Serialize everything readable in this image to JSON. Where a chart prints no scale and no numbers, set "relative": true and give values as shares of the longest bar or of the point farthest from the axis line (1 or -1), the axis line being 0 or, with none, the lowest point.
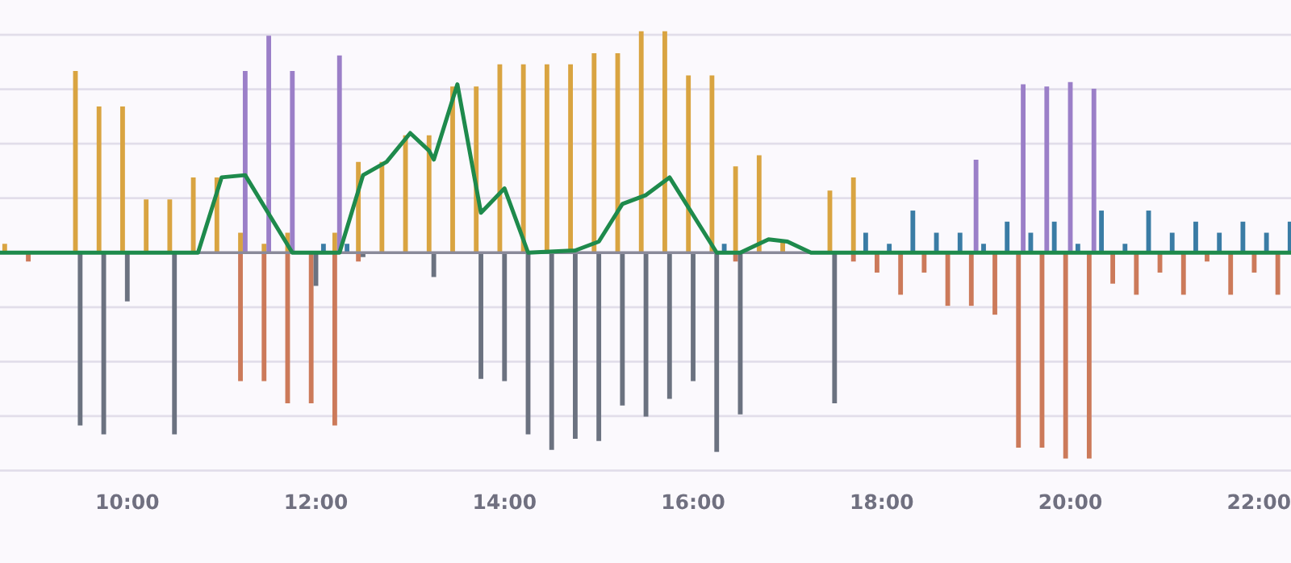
{
  "chart_data": {
    "type": "bar",
    "relative": true,
    "grid": "y",
    "tick_labels": "x",
    "xlim": [
      8.65,
      22.34
    ],
    "xticks": [
      {
        "value": 10,
        "label": "10:00"
      },
      {
        "value": 12,
        "label": "12:00"
      },
      {
        "value": 14,
        "label": "14:00"
      },
      {
        "value": 16,
        "label": "16:00"
      },
      {
        "value": 18,
        "label": "18:00"
      },
      {
        "value": 20,
        "label": "20:00"
      },
      {
        "value": 22,
        "label": "22:00"
      }
    ],
    "series": [
      {
        "color": "#d9a441",
        "x": [
          8.7,
          9.45,
          9.7,
          9.95,
          10.2,
          10.45,
          10.7,
          10.95,
          11.2,
          11.45,
          11.7,
          12.2,
          12.45,
          12.7,
          12.95,
          13.2,
          13.45,
          13.7,
          13.95,
          14.2,
          14.45,
          14.7,
          14.95,
          15.2,
          15.45,
          15.7,
          15.95,
          16.2,
          16.45,
          16.7,
          16.95,
          17.45,
          17.7
        ],
        "values": [
          0.04,
          0.82,
          0.66,
          0.66,
          0.24,
          0.24,
          0.34,
          0.34,
          0.09,
          0.04,
          0.09,
          0.09,
          0.41,
          0.41,
          0.53,
          0.53,
          0.75,
          0.75,
          0.85,
          0.85,
          0.85,
          0.85,
          0.9,
          0.9,
          1,
          1,
          0.8,
          0.8,
          0.39,
          0.44,
          0.05,
          0.28,
          0.34
        ]
      },
      {
        "color": "#cc7a5a",
        "x": [
          8.95,
          11.2,
          11.45,
          11.7,
          11.95,
          12.2,
          12.45,
          16.45,
          17.7,
          17.95,
          18.2,
          18.45,
          18.7,
          18.95,
          19.2,
          19.45,
          19.7,
          19.95,
          20.2,
          20.45,
          20.7,
          20.95,
          21.2,
          21.45,
          21.7,
          21.95,
          22.2
        ],
        "values": [
          -0.04,
          -0.58,
          -0.58,
          -0.68,
          -0.68,
          -0.78,
          -0.04,
          -0.04,
          -0.04,
          -0.09,
          -0.19,
          -0.09,
          -0.24,
          -0.24,
          -0.28,
          -0.88,
          -0.88,
          -0.93,
          -0.93,
          -0.14,
          -0.19,
          -0.09,
          -0.19,
          -0.04,
          -0.19,
          -0.09,
          -0.19
        ]
      },
      {
        "color": "#6b7280",
        "x": [
          9.5,
          9.75,
          10.0,
          10.5,
          12.0,
          12.5,
          13.25,
          13.75,
          14.0,
          14.25,
          14.5,
          14.75,
          15.0,
          15.25,
          15.5,
          15.75,
          16.0,
          16.25,
          16.5,
          17.5
        ],
        "values": [
          -0.78,
          -0.82,
          -0.22,
          -0.82,
          -0.15,
          -0.02,
          -0.11,
          -0.57,
          -0.58,
          -0.82,
          -0.89,
          -0.84,
          -0.85,
          -0.69,
          -0.74,
          -0.66,
          -0.58,
          -0.9,
          -0.73,
          -0.68
        ]
      },
      {
        "color": "#9b7fc8",
        "x": [
          11.25,
          11.5,
          11.75,
          12.25,
          19.0,
          19.5,
          19.75,
          20.0,
          20.25
        ],
        "values": [
          0.82,
          0.98,
          0.82,
          0.89,
          0.42,
          0.76,
          0.75,
          0.77,
          0.74
        ]
      },
      {
        "color": "#3a7ca5",
        "x": [
          12.08,
          12.33,
          16.33,
          17.83,
          18.08,
          18.33,
          18.58,
          18.83,
          19.08,
          19.33,
          19.58,
          19.83,
          20.08,
          20.33,
          20.58,
          20.83,
          21.08,
          21.33,
          21.58,
          21.83,
          22.08,
          22.33
        ],
        "values": [
          0.04,
          0.04,
          0.04,
          0.09,
          0.04,
          0.19,
          0.09,
          0.09,
          0.04,
          0.14,
          0.09,
          0.14,
          0.04,
          0.19,
          0.04,
          0.19,
          0.09,
          0.14,
          0.09,
          0.14,
          0.09,
          0.14
        ]
      },
      {
        "type": "line",
        "color": "#1e8a4c",
        "x": [
          8.65,
          10.75,
          11.0,
          11.25,
          11.75,
          12.25,
          12.5,
          12.75,
          13.0,
          13.2,
          13.25,
          13.5,
          13.75,
          14.0,
          14.25,
          14.75,
          15.0,
          15.25,
          15.5,
          15.75,
          16.25,
          16.5,
          16.8,
          17.0,
          17.25,
          22.34
        ],
        "values": [
          0,
          0,
          0.34,
          0.35,
          0,
          0,
          0.35,
          0.41,
          0.54,
          0.46,
          0.42,
          0.76,
          0.18,
          0.29,
          0,
          0.01,
          0.05,
          0.22,
          0.26,
          0.34,
          0,
          0,
          0.06,
          0.05,
          0,
          0
        ]
      }
    ]
  }
}
